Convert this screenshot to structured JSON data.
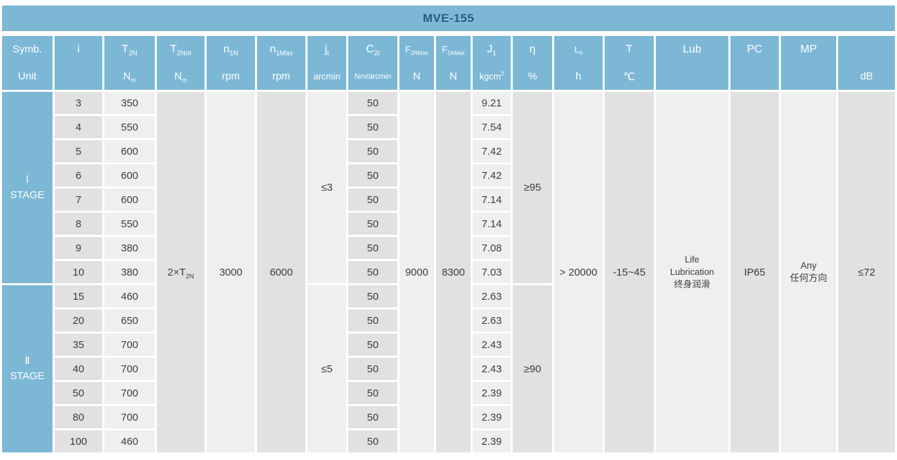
{
  "title": "MVE-155",
  "colors": {
    "header_blue": "#7cb7d6",
    "title_text": "#1d5a80",
    "cell_light": "#efefef",
    "cell_dark": "#e1e1e1",
    "body_text": "#3c3c3c"
  },
  "header": {
    "symb_label": "Symb.",
    "unit_label": "Unit",
    "columns": [
      {
        "id": "i",
        "sym_base": "i"
      },
      {
        "id": "t2n",
        "sym_base": "T",
        "sym_sub": "2N",
        "unit_base": "N",
        "unit_sub": "m"
      },
      {
        "id": "t2not",
        "sym_base": "T",
        "sym_sub": "2Not",
        "unit_base": "N",
        "unit_sub": "m"
      },
      {
        "id": "n1n",
        "sym_base": "n",
        "sym_sub": "1N",
        "unit_base": "rpm"
      },
      {
        "id": "n1max",
        "sym_base": "n",
        "sym_sub": "1Max",
        "unit_base": "rpm"
      },
      {
        "id": "jt",
        "sym_base": "j",
        "sym_sub": "t",
        "unit_base": "arcmin"
      },
      {
        "id": "c2t",
        "sym_base": "C",
        "sym_sub": "2t",
        "unit_base": "Nm/arcmin"
      },
      {
        "id": "f2rmax",
        "sym_base": "F",
        "sym_sub": "2RMax",
        "unit_base": "N"
      },
      {
        "id": "f2amax",
        "sym_base": "F",
        "sym_sub": "2AMax",
        "unit_base": "N"
      },
      {
        "id": "j1",
        "sym_base": "J",
        "sym_sub": "1",
        "unit_base": "kgcm",
        "unit_sup": "2"
      },
      {
        "id": "eta",
        "sym_base": "η",
        "unit_base": "%"
      },
      {
        "id": "lh",
        "sym_base": "L",
        "sym_sub": "h",
        "unit_base": "h"
      },
      {
        "id": "t",
        "sym_base": "T",
        "unit_base": "℃"
      },
      {
        "id": "lub",
        "sym_base": "Lub"
      },
      {
        "id": "pc",
        "sym_base": "PC"
      },
      {
        "id": "mp",
        "sym_base": "MP"
      },
      {
        "id": "db",
        "unit_base": "dB"
      }
    ]
  },
  "stages": [
    {
      "numeral": "Ⅰ",
      "label": "STAGE",
      "jt": "≤3",
      "eta": "≥95",
      "rows": [
        {
          "i": "3",
          "t2n": "350",
          "c2t": "50",
          "j1": "9.21"
        },
        {
          "i": "4",
          "t2n": "550",
          "c2t": "50",
          "j1": "7.54"
        },
        {
          "i": "5",
          "t2n": "600",
          "c2t": "50",
          "j1": "7.42"
        },
        {
          "i": "6",
          "t2n": "600",
          "c2t": "50",
          "j1": "7.42"
        },
        {
          "i": "7",
          "t2n": "600",
          "c2t": "50",
          "j1": "7.14"
        },
        {
          "i": "8",
          "t2n": "550",
          "c2t": "50",
          "j1": "7.14"
        },
        {
          "i": "9",
          "t2n": "380",
          "c2t": "50",
          "j1": "7.08"
        },
        {
          "i": "10",
          "t2n": "380",
          "c2t": "50",
          "j1": "7.03"
        }
      ]
    },
    {
      "numeral": "Ⅱ",
      "label": "STAGE",
      "jt": "≤5",
      "eta": "≥90",
      "rows": [
        {
          "i": "15",
          "t2n": "460",
          "c2t": "50",
          "j1": "2.63"
        },
        {
          "i": "20",
          "t2n": "650",
          "c2t": "50",
          "j1": "2.63"
        },
        {
          "i": "35",
          "t2n": "700",
          "c2t": "50",
          "j1": "2.43"
        },
        {
          "i": "40",
          "t2n": "700",
          "c2t": "50",
          "j1": "2.43"
        },
        {
          "i": "50",
          "t2n": "700",
          "c2t": "50",
          "j1": "2.39"
        },
        {
          "i": "80",
          "t2n": "700",
          "c2t": "50",
          "j1": "2.39"
        },
        {
          "i": "100",
          "t2n": "460",
          "c2t": "50",
          "j1": "2.39"
        }
      ]
    }
  ],
  "merged": {
    "t2not_base": "2×T",
    "t2not_sub": "2N",
    "n1n": "3000",
    "n1max": "6000",
    "f2rmax": "9000",
    "f2amax": "8300",
    "lh": "> 20000",
    "t_range": "-15~45",
    "lub_line1": "Life",
    "lub_line2": "Lubrication",
    "lub_line3": "终身润滑",
    "pc": "IP65",
    "mp_line1": "Any",
    "mp_line2": "任何方向",
    "db": "≤72"
  }
}
